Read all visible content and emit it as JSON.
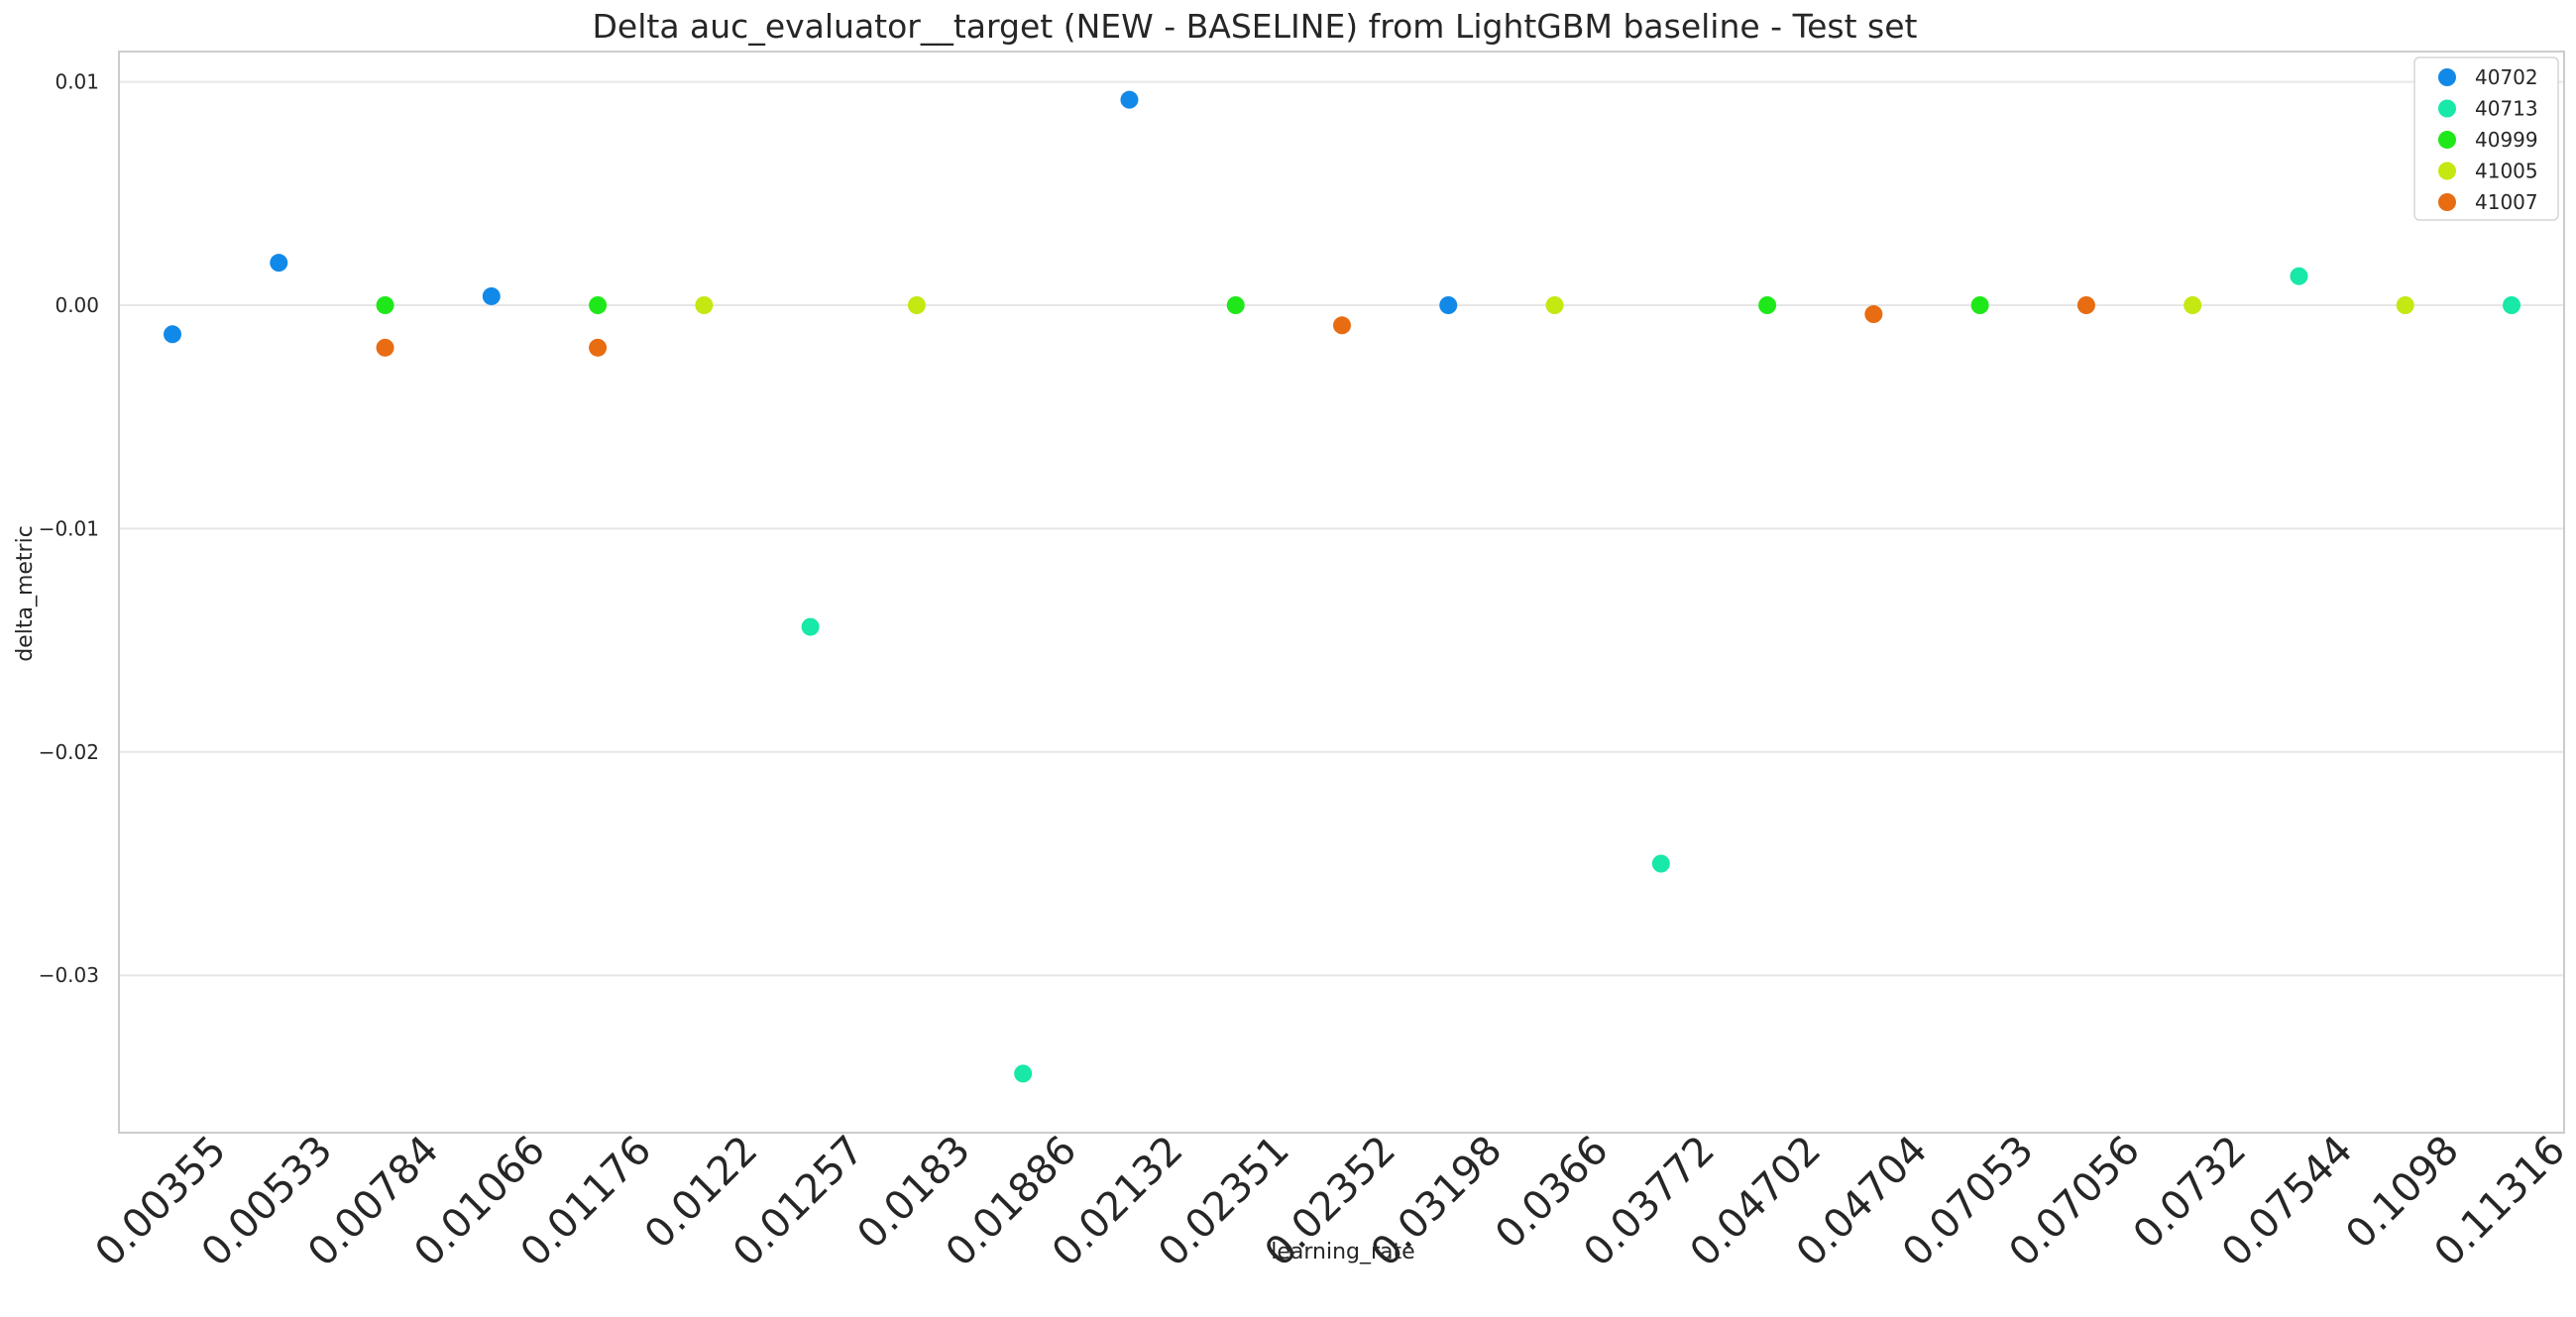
{
  "chart_data": {
    "type": "scatter",
    "title": "Delta auc_evaluator__target (NEW - BASELINE) from LightGBM baseline - Test set",
    "xlabel": "learning_rate",
    "ylabel": "delta_metric",
    "categories": [
      "0.00355",
      "0.00533",
      "0.00784",
      "0.01066",
      "0.01176",
      "0.0122",
      "0.01257",
      "0.0183",
      "0.01886",
      "0.02132",
      "0.02351",
      "0.02352",
      "0.03198",
      "0.0366",
      "0.03772",
      "0.04702",
      "0.04704",
      "0.07053",
      "0.07056",
      "0.0732",
      "0.07544",
      "0.1098",
      "0.11316"
    ],
    "ylim": [
      -0.037,
      0.0125
    ],
    "yticks": [
      0.01,
      0.0,
      -0.01,
      -0.02,
      -0.03
    ],
    "ytick_labels": [
      "0.01",
      "0.00",
      "−0.01",
      "−0.02",
      "−0.03"
    ],
    "grid": "horizontal",
    "legend_position": "top-right",
    "series": [
      {
        "name": "40702",
        "color": "#1189e8",
        "points": [
          {
            "x": "0.00355",
            "y": -0.0013
          },
          {
            "x": "0.00533",
            "y": 0.0019
          },
          {
            "x": "0.01066",
            "y": 0.0004
          },
          {
            "x": "0.02132",
            "y": 0.0092
          },
          {
            "x": "0.03198",
            "y": 0.0
          }
        ]
      },
      {
        "name": "40713",
        "color": "#18e8a8",
        "points": [
          {
            "x": "0.01257",
            "y": -0.0144
          },
          {
            "x": "0.01886",
            "y": -0.0344
          },
          {
            "x": "0.03772",
            "y": -0.025
          },
          {
            "x": "0.07544",
            "y": 0.0013
          },
          {
            "x": "0.11316",
            "y": 0.0
          }
        ]
      },
      {
        "name": "40999",
        "color": "#1fe81a",
        "points": [
          {
            "x": "0.00784",
            "y": 0.0
          },
          {
            "x": "0.01176",
            "y": 0.0
          },
          {
            "x": "0.02351",
            "y": 0.0
          },
          {
            "x": "0.04702",
            "y": 0.0
          },
          {
            "x": "0.07053",
            "y": 0.0
          }
        ]
      },
      {
        "name": "41005",
        "color": "#c3e812",
        "points": [
          {
            "x": "0.0122",
            "y": 0.0
          },
          {
            "x": "0.0183",
            "y": 0.0
          },
          {
            "x": "0.0366",
            "y": 0.0
          },
          {
            "x": "0.0732",
            "y": 0.0
          },
          {
            "x": "0.1098",
            "y": 0.0
          }
        ]
      },
      {
        "name": "41007",
        "color": "#e86c12",
        "points": [
          {
            "x": "0.00784",
            "y": -0.0019
          },
          {
            "x": "0.01176",
            "y": -0.0019
          },
          {
            "x": "0.02352",
            "y": -0.0009
          },
          {
            "x": "0.04704",
            "y": -0.0004
          },
          {
            "x": "0.07056",
            "y": 0.0
          }
        ]
      }
    ]
  }
}
